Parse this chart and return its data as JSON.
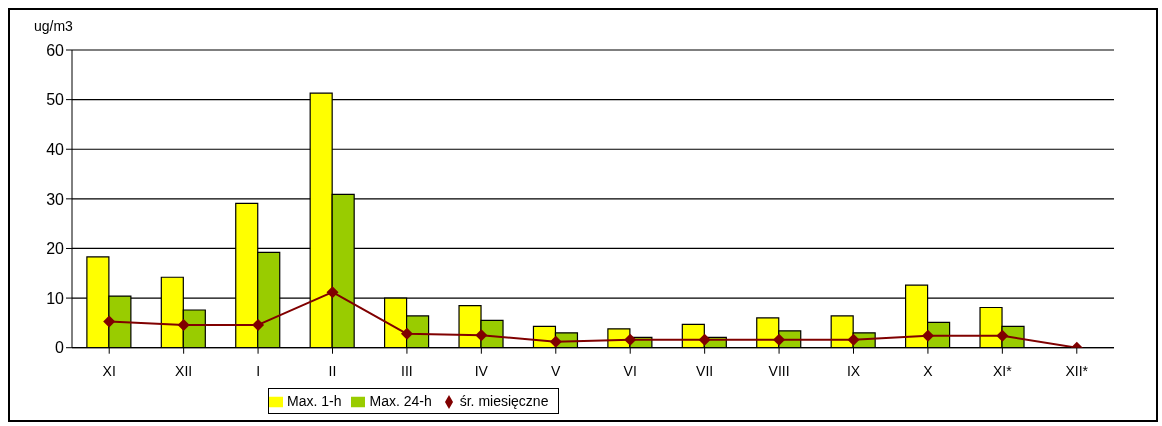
{
  "chart_data": {
    "type": "bar",
    "ylabel": "ug/m3",
    "categories": [
      "XI",
      "XII",
      "I",
      "II",
      "III",
      "IV",
      "V",
      "VI",
      "VII",
      "VIII",
      "IX",
      "X",
      "XI*",
      "XII*"
    ],
    "series": [
      {
        "name": "Max. 1-h",
        "color": "#ffff00",
        "values": [
          18.3,
          14.2,
          29.1,
          51.3,
          10,
          8.5,
          4.3,
          3.8,
          4.7,
          6,
          6.4,
          12.6,
          8.1,
          null
        ]
      },
      {
        "name": "Max. 24-h",
        "color": "#99cc00",
        "values": [
          10.4,
          7.6,
          19.2,
          30.9,
          6.4,
          5.5,
          3,
          2.1,
          2.1,
          3.4,
          3,
          5.1,
          4.3,
          null
        ]
      },
      {
        "name": "śr. miesięczne",
        "type": "line",
        "color": "#800000",
        "marker": "diamond",
        "values": [
          5.3,
          4.6,
          4.6,
          11.2,
          2.8,
          2.5,
          1.2,
          1.6,
          1.6,
          1.6,
          1.6,
          2.4,
          2.4,
          0
        ]
      }
    ],
    "ylim": [
      0,
      60
    ],
    "yticks": [
      0,
      10,
      20,
      30,
      40,
      50,
      60
    ],
    "grid": "y",
    "legend": "bottom"
  }
}
